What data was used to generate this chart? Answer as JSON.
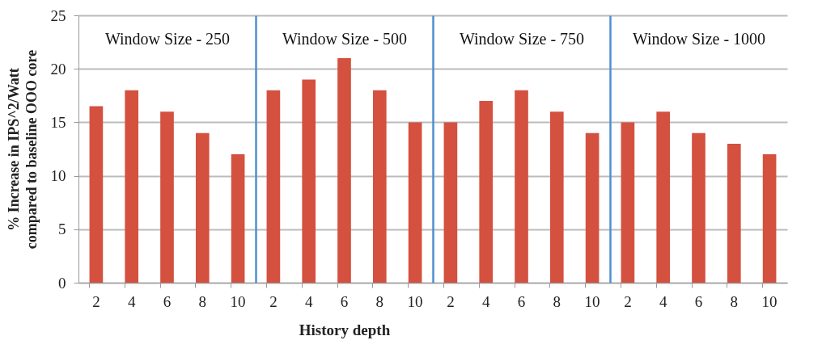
{
  "chart_data": [
    {
      "type": "bar",
      "title": "Window Size - 250",
      "ylabel": "% Increase in IPS^2/Watt\ncompared to baseline OOO core",
      "categories": [
        "2",
        "4",
        "6",
        "8",
        "10"
      ],
      "values": [
        16.5,
        18,
        16,
        14,
        12
      ],
      "color": "#d4503f",
      "ylim": [
        0,
        25
      ],
      "yticks": [
        0,
        5,
        10,
        15,
        20,
        25
      ],
      "grid": "y"
    },
    {
      "type": "bar",
      "title": "Window Size - 500",
      "xlabel": "History depth",
      "categories": [
        "2",
        "4",
        "6",
        "8",
        "10"
      ],
      "values": [
        18,
        19,
        21,
        18,
        15
      ],
      "color": "#d4503f",
      "ylim": [
        0,
        25
      ],
      "yticks": [
        0,
        5,
        10,
        15,
        20,
        25
      ],
      "grid": "y",
      "tick_labels": "x"
    },
    {
      "type": "bar",
      "title": "Window Size - 750",
      "categories": [
        "2",
        "4",
        "6",
        "8",
        "10"
      ],
      "values": [
        15,
        17,
        18,
        16,
        14
      ],
      "color": "#d4503f",
      "ylim": [
        0,
        25
      ],
      "yticks": [
        0,
        5,
        10,
        15,
        20,
        25
      ],
      "grid": "y",
      "tick_labels": "x"
    },
    {
      "type": "bar",
      "title": "Window Size - 1000",
      "categories": [
        "2",
        "4",
        "6",
        "8",
        "10"
      ],
      "values": [
        15,
        16,
        14,
        13,
        12
      ],
      "color": "#d4503f",
      "ylim": [
        0,
        25
      ],
      "yticks": [
        0,
        5,
        10,
        15,
        20,
        25
      ],
      "grid": "y",
      "tick_labels": "x"
    }
  ]
}
